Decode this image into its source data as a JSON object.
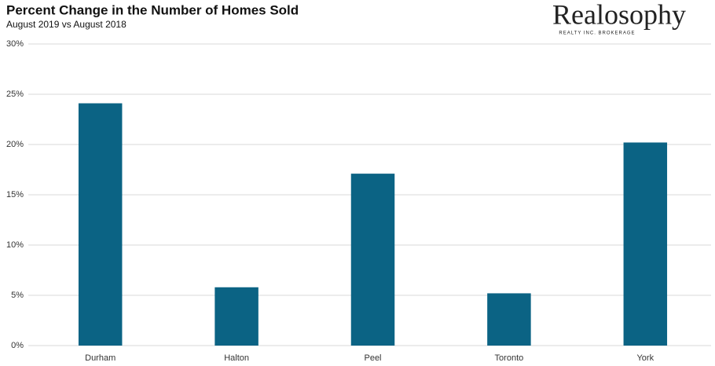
{
  "chart_data": {
    "type": "bar",
    "title": "Percent Change in the Number of Homes Sold",
    "subtitle": "August 2019 vs August 2018",
    "categories": [
      "Durham",
      "Halton",
      "Peel",
      "Toronto",
      "York"
    ],
    "values": [
      24.1,
      5.8,
      17.1,
      5.2,
      20.2
    ],
    "color": "#0b6384",
    "ylim": [
      0,
      30
    ],
    "yticks": [
      {
        "value": 0,
        "label": "0%"
      },
      {
        "value": 5,
        "label": "5%"
      },
      {
        "value": 10,
        "label": "10%"
      },
      {
        "value": 15,
        "label": "15%"
      },
      {
        "value": 20,
        "label": "20%"
      },
      {
        "value": 25,
        "label": "25%"
      },
      {
        "value": 30,
        "label": "30%"
      }
    ],
    "grid": true
  },
  "logo": {
    "name": "Realosophy",
    "tagline": "REALTY INC. BROKERAGE"
  }
}
